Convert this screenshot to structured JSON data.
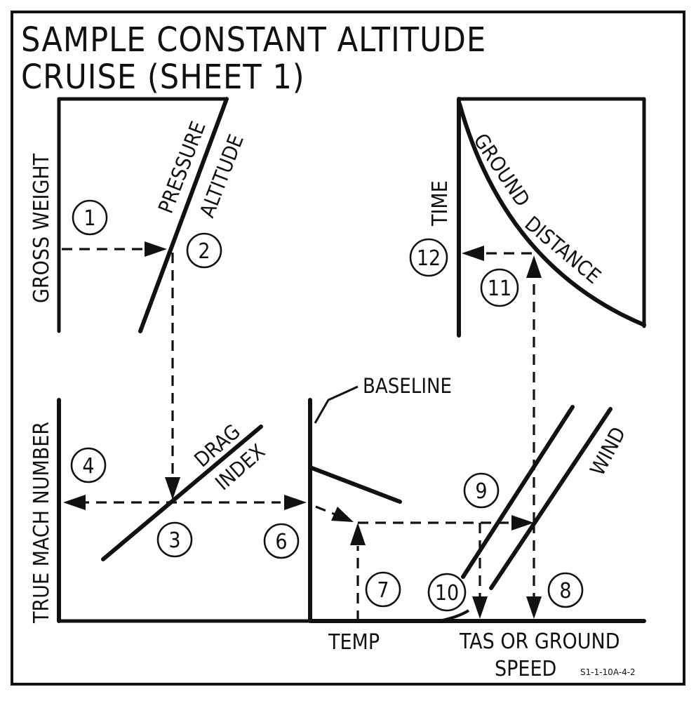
{
  "title": {
    "line1": "SAMPLE CONSTANT ALTITUDE",
    "line2": "CRUISE (SHEET 1)"
  },
  "axes": {
    "gross_weight": "GROSS WEIGHT",
    "true_mach_number": "TRUE MACH NUMBER",
    "time": "TIME",
    "temp": "TEMP",
    "tas_line1": "TAS OR GROUND",
    "tas_line2": "SPEED"
  },
  "curves": {
    "pressure": "PRESSURE",
    "altitude": "ALTITUDE",
    "drag": "DRAG",
    "index": "INDEX",
    "baseline": "BASELINE",
    "ground": "GROUND",
    "distance": "DISTANCE",
    "wind": "WIND"
  },
  "steps": [
    "1",
    "2",
    "3",
    "4",
    "6",
    "7",
    "8",
    "9",
    "10",
    "11",
    "12"
  ],
  "figure_code": "S1-1-10A-4-2"
}
